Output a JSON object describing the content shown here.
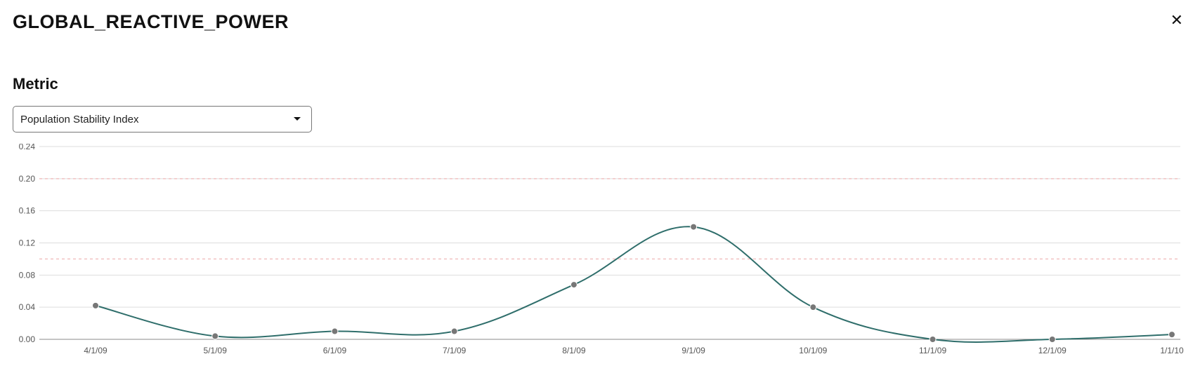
{
  "header": {
    "title": "GLOBAL_REACTIVE_POWER",
    "close_label": "✕"
  },
  "controls": {
    "section_label": "Metric",
    "metric_select": {
      "value": "Population Stability Index"
    }
  },
  "chart": {
    "type": "line",
    "background_color": "#ffffff",
    "grid_color": "#dddddd",
    "axis_color": "#888888",
    "line_color": "#2f6e6b",
    "line_width": 2,
    "marker_color": "#777777",
    "marker_border": "#ffffff",
    "marker_radius": 4.5,
    "smooth": true,
    "ylim": [
      0.0,
      0.24
    ],
    "yticks": [
      0.0,
      0.04,
      0.08,
      0.12,
      0.16,
      0.2,
      0.24
    ],
    "ytick_labels": [
      "0.00",
      "0.04",
      "0.08",
      "0.12",
      "0.16",
      "0.20",
      "0.24"
    ],
    "tick_fontsize": 12,
    "tick_color": "#555555",
    "thresholds": [
      {
        "value": 0.1,
        "color": "#f1c1c1",
        "dash": "4 4"
      },
      {
        "value": 0.2,
        "color": "#f1c1c1",
        "dash": "4 4"
      }
    ],
    "x_labels": [
      "4/1/09",
      "5/1/09",
      "6/1/09",
      "7/1/09",
      "8/1/09",
      "9/1/09",
      "10/1/09",
      "11/1/09",
      "12/1/09",
      "1/1/10"
    ],
    "values": [
      0.042,
      0.004,
      0.01,
      0.01,
      0.068,
      0.14,
      0.04,
      0.0,
      0.0,
      0.006
    ]
  }
}
